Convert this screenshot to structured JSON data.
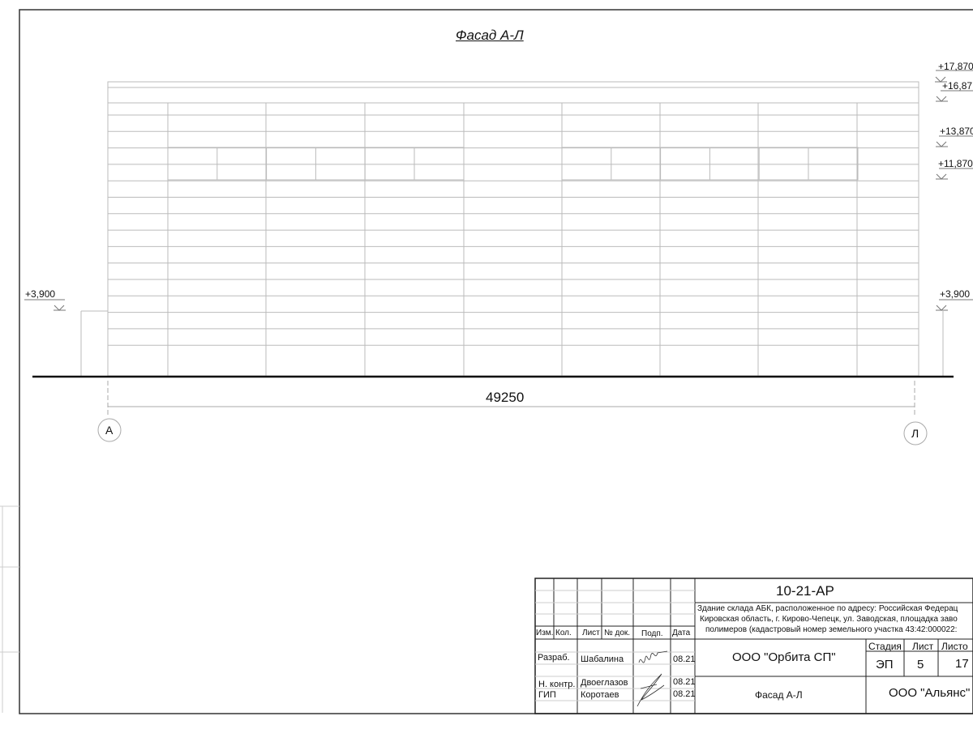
{
  "drawing": {
    "title": "Фасад А-Л",
    "dimension": "49250",
    "axes": [
      "А",
      "Л"
    ],
    "levels_right": [
      "+17,870",
      "+16,87",
      "+13,870",
      "+11,870",
      "+3,900"
    ],
    "level_left": "+3,900"
  },
  "title_block": {
    "code": "10-21-АР",
    "description": [
      "Здание склада АБК, расположенное по адресу: Российская Федерац",
      "Кировская область, г. Кирово-Чепецк, ул. Заводская, площадка заво",
      "полимеров (кадастровый номер земельного участка 43:42:000022:"
    ],
    "headers": [
      "Изм.",
      "Кол.",
      "Лист",
      "№ док.",
      "Подп.",
      "Дата"
    ],
    "rows": [
      {
        "role": "Разраб.",
        "name": "Шабалина",
        "date": "08.21"
      },
      {
        "role": "Н. контр.",
        "name": "Двоеглазов",
        "date": "08.21"
      },
      {
        "role": "ГИП",
        "name": "Коротаев",
        "date": "08.21"
      }
    ],
    "company": "ООО \"Орбита СП\"",
    "stage_label": "Стадия",
    "sheet_label": "Лист",
    "sheets_label": "Листо",
    "stage": "ЭП",
    "sheet": "5",
    "sheets": "17",
    "sheet_title": "Фасад А-Л",
    "client": "ООО \"Альянс\""
  }
}
